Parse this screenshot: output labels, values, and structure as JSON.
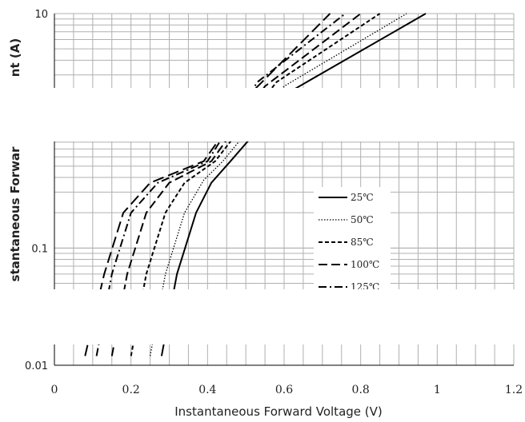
{
  "chart_data": {
    "type": "line",
    "xlabel": "Instantaneous Forward Voltage (V)",
    "ylabel_visible": "stantaneous Forwar",
    "ylabel_top_fragment": "nt (A)",
    "xlim": [
      0,
      1.2
    ],
    "ylim": [
      0.01,
      10
    ],
    "y_scale": "log",
    "grid": true,
    "x_ticks": [
      "0",
      "0.2",
      "0.4",
      "0.6",
      "0.8",
      "1",
      "1.2"
    ],
    "y_ticks": [
      "0.01",
      "0.1",
      "10"
    ],
    "legend": {
      "placement": "center-right",
      "visible_entries": [
        "25℃",
        "50℃",
        "85℃",
        "100℃",
        "125℃"
      ]
    },
    "series": [
      {
        "name": "25℃",
        "dash": "solid",
        "points": [
          [
            0.28,
            0.012
          ],
          [
            0.32,
            0.06
          ],
          [
            0.37,
            0.2
          ],
          [
            0.41,
            0.36
          ],
          [
            0.46,
            0.55
          ],
          [
            0.62,
            2.2
          ],
          [
            0.97,
            10
          ]
        ]
      },
      {
        "name": "50℃",
        "dash": "dot",
        "points": [
          [
            0.25,
            0.012
          ],
          [
            0.29,
            0.06
          ],
          [
            0.34,
            0.2
          ],
          [
            0.39,
            0.38
          ],
          [
            0.44,
            0.55
          ],
          [
            0.6,
            2.4
          ],
          [
            0.92,
            10
          ]
        ]
      },
      {
        "name": "85℃",
        "dash": "short-dash",
        "points": [
          [
            0.2,
            0.012
          ],
          [
            0.24,
            0.06
          ],
          [
            0.29,
            0.2
          ],
          [
            0.34,
            0.36
          ],
          [
            0.42,
            0.55
          ],
          [
            0.58,
            2.6
          ],
          [
            0.85,
            10
          ]
        ]
      },
      {
        "name": "100℃",
        "dash": "long-dash",
        "points": [
          [
            0.15,
            0.012
          ],
          [
            0.19,
            0.06
          ],
          [
            0.24,
            0.2
          ],
          [
            0.3,
            0.36
          ],
          [
            0.41,
            0.55
          ],
          [
            0.55,
            2.4
          ],
          [
            0.8,
            10
          ]
        ]
      },
      {
        "name": "125℃",
        "dash": "dash-dot",
        "points": [
          [
            0.11,
            0.012
          ],
          [
            0.15,
            0.06
          ],
          [
            0.2,
            0.2
          ],
          [
            0.27,
            0.36
          ],
          [
            0.4,
            0.55
          ],
          [
            0.53,
            2.6
          ],
          [
            0.76,
            10
          ]
        ]
      },
      {
        "name": "",
        "dash": "long-dash-wide",
        "points": [
          [
            0.08,
            0.012
          ],
          [
            0.13,
            0.06
          ],
          [
            0.18,
            0.2
          ],
          [
            0.25,
            0.36
          ],
          [
            0.39,
            0.55
          ],
          [
            0.52,
            2.2
          ],
          [
            0.72,
            10
          ]
        ]
      }
    ]
  },
  "colors": {
    "background": "#ffffff",
    "grid": "#b0b0b0",
    "series": "#000000"
  }
}
